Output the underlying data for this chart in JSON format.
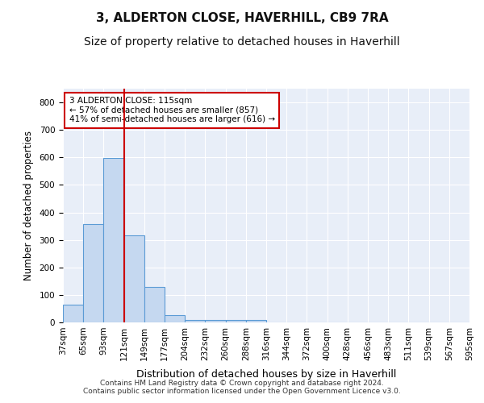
{
  "title": "3, ALDERTON CLOSE, HAVERHILL, CB9 7RA",
  "subtitle": "Size of property relative to detached houses in Haverhill",
  "xlabel": "Distribution of detached houses by size in Haverhill",
  "ylabel": "Number of detached properties",
  "footer_line1": "Contains HM Land Registry data © Crown copyright and database right 2024.",
  "footer_line2": "Contains public sector information licensed under the Open Government Licence v3.0.",
  "bin_labels": [
    "37sqm",
    "65sqm",
    "93sqm",
    "121sqm",
    "149sqm",
    "177sqm",
    "204sqm",
    "232sqm",
    "260sqm",
    "288sqm",
    "316sqm",
    "344sqm",
    "372sqm",
    "400sqm",
    "428sqm",
    "456sqm",
    "483sqm",
    "511sqm",
    "539sqm",
    "567sqm",
    "595sqm"
  ],
  "bar_values": [
    65,
    358,
    597,
    317,
    128,
    25,
    10,
    8,
    8,
    10,
    0,
    0,
    0,
    0,
    0,
    0,
    0,
    0,
    0,
    0
  ],
  "bar_color": "#c5d8f0",
  "bar_edge_color": "#5b9bd5",
  "marker_color": "#cc0000",
  "annotation_title": "3 ALDERTON CLOSE: 115sqm",
  "annotation_line1": "← 57% of detached houses are smaller (857)",
  "annotation_line2": "41% of semi-detached houses are larger (616) →",
  "annotation_box_color": "#ffffff",
  "annotation_box_edge": "#cc0000",
  "ylim": [
    0,
    850
  ],
  "yticks": [
    0,
    100,
    200,
    300,
    400,
    500,
    600,
    700,
    800
  ],
  "plot_bg_color": "#e8eef8",
  "title_fontsize": 11,
  "subtitle_fontsize": 10,
  "tick_fontsize": 7.5
}
